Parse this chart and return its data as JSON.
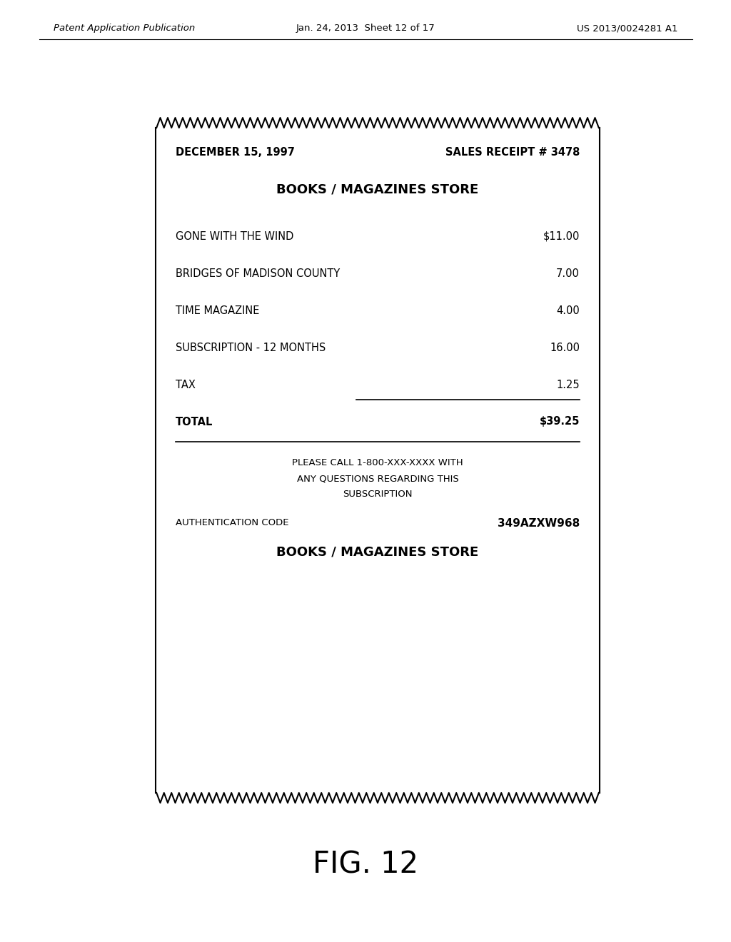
{
  "header_left": "Patent Application Publication",
  "header_middle": "Jan. 24, 2013  Sheet 12 of 17",
  "header_right": "US 2013/0024281 A1",
  "figure_label": "FIG. 12",
  "receipt": {
    "date": "DECEMBER 15, 1997",
    "receipt_num": "SALES RECEIPT # 3478",
    "store_name": "BOOKS / MAGAZINES STORE",
    "items": [
      {
        "name": "GONE WITH THE WIND",
        "price": "$11.00"
      },
      {
        "name": "BRIDGES OF MADISON COUNTY",
        "price": "7.00"
      },
      {
        "name": "TIME MAGAZINE",
        "price": "4.00"
      },
      {
        "name": "SUBSCRIPTION - 12 MONTHS",
        "price": "16.00"
      },
      {
        "name": "TAX",
        "price": "1.25"
      },
      {
        "name": "TOTAL",
        "price": "$39.25"
      }
    ],
    "footer_lines": [
      "PLEASE CALL 1-800-XXX-XXXX WITH",
      "ANY QUESTIONS REGARDING THIS",
      "SUBSCRIPTION"
    ],
    "auth_label": "AUTHENTICATION CODE",
    "auth_code": "349AZXW968",
    "store_name_bottom": "BOOKS / MAGAZINES STORE"
  },
  "bg_color": "#ffffff",
  "text_color": "#000000",
  "border_color": "#000000"
}
